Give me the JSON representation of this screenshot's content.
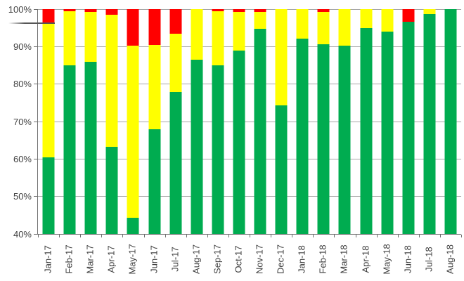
{
  "chart_data": {
    "type": "bar",
    "subtype": "stacked-percent",
    "title": "",
    "xlabel": "",
    "ylabel": "",
    "ylim": [
      40,
      100
    ],
    "grid": true,
    "legend": "none",
    "ytick_labels": [
      "100%",
      "90%",
      "80%",
      "70%",
      "60%",
      "50%",
      "40%"
    ],
    "categories": [
      "Jan-17",
      "Feb-17",
      "Mar-17",
      "Apr-17",
      "May-17",
      "Jun-17",
      "Jul-17",
      "Aug-17",
      "Sep-17",
      "Oct-17",
      "Nov-17",
      "Dec-17",
      "Jan-18",
      "Feb-18",
      "Mar-18",
      "Apr-18",
      "May-18",
      "Jun-18",
      "Jul-18",
      "Aug-18"
    ],
    "series": [
      {
        "name": "green",
        "color": "#00AC50",
        "values": [
          60.5,
          85.0,
          86.0,
          63.2,
          44.4,
          68.0,
          77.8,
          86.5,
          85.0,
          89.0,
          94.8,
          74.3,
          92.2,
          90.7,
          90.2,
          95.0,
          94.0,
          96.6,
          98.7,
          100.0
        ]
      },
      {
        "name": "yellow",
        "color": "#FFFF00",
        "values": [
          35.7,
          14.5,
          13.2,
          35.3,
          45.8,
          22.5,
          15.7,
          13.5,
          14.4,
          10.3,
          4.5,
          25.7,
          7.8,
          8.5,
          9.8,
          5.0,
          6.0,
          0.0,
          1.3,
          0.0
        ]
      },
      {
        "name": "red",
        "color": "#FF0000",
        "values": [
          3.8,
          0.5,
          0.8,
          1.5,
          9.8,
          9.5,
          6.5,
          0.0,
          0.6,
          0.7,
          0.7,
          0.0,
          0.0,
          0.8,
          0.0,
          0.0,
          0.0,
          3.4,
          0.0,
          0.0
        ]
      }
    ],
    "reference_line": {
      "value": 96.3,
      "span": "left edge through first bar"
    },
    "colors": {
      "gridline": "#a6a6a6",
      "axis": "#6e6e6e",
      "tick_label": "#3f3f3f",
      "background": "#ffffff"
    }
  }
}
